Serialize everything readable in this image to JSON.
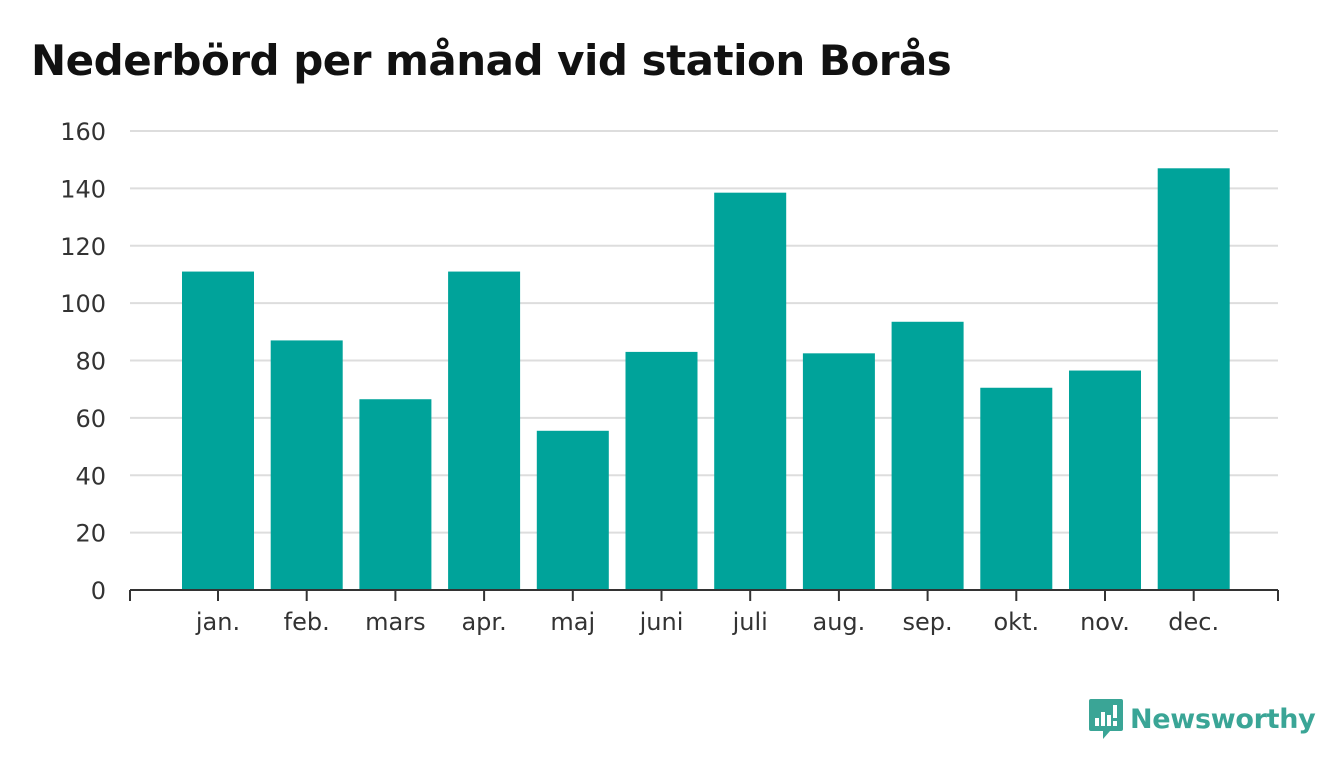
{
  "chart_data": {
    "type": "bar",
    "title": "Nederbörd per månad vid station Borås",
    "xlabel": "",
    "ylabel": "",
    "categories": [
      "jan.",
      "feb.",
      "mars",
      "apr.",
      "maj",
      "juni",
      "juli",
      "aug.",
      "sep.",
      "okt.",
      "nov.",
      "dec."
    ],
    "values": [
      111,
      87,
      66.5,
      111,
      55.5,
      83,
      138.5,
      82.5,
      93.5,
      70.5,
      76.5,
      147
    ],
    "ylim": [
      0,
      160
    ],
    "yticks": [
      "0",
      "20",
      "40",
      "60",
      "80",
      "100",
      "120",
      "140",
      "160"
    ],
    "bar_color": "#00a39a",
    "grid": true,
    "legend": "none"
  },
  "brand": {
    "name": "Newsworthy",
    "icon": "newsworthy-logo-icon",
    "color": "#3aa596"
  }
}
